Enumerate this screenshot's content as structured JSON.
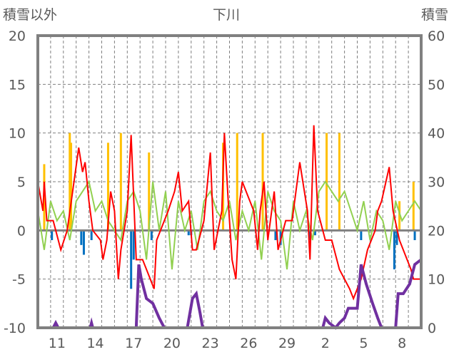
{
  "chart_data": {
    "type": "line",
    "title": "下川",
    "ylabel_left": "積雪以外",
    "ylabel_right": "積雪",
    "ylim_left": [
      -10,
      20
    ],
    "ylim_right": [
      0,
      60
    ],
    "yticks_left": [
      "20",
      "15",
      "10",
      "5",
      "0",
      "-5",
      "-10"
    ],
    "yticks_right": [
      "60",
      "50",
      "40",
      "30",
      "20",
      "10",
      "0"
    ],
    "x_range_days": [
      0,
      30
    ],
    "xtick_labels": [
      {
        "t": 1.5,
        "label": "11"
      },
      {
        "t": 4.5,
        "label": "14"
      },
      {
        "t": 7.5,
        "label": "17"
      },
      {
        "t": 10.5,
        "label": "20"
      },
      {
        "t": 13.5,
        "label": "23"
      },
      {
        "t": 16.5,
        "label": "26"
      },
      {
        "t": 19.5,
        "label": "29"
      },
      {
        "t": 22.5,
        "label": "2"
      },
      {
        "t": 25.5,
        "label": "5"
      },
      {
        "t": 28.5,
        "label": "8"
      }
    ],
    "grid": "dashed vertical per day, horizontal every 5",
    "colors": {
      "red": "#ff0000",
      "green": "#92d050",
      "purple": "#7030a0",
      "yellow": "#ffc000",
      "blue": "#0070c0",
      "frame": "#808080"
    },
    "series": [
      {
        "name": "red-line",
        "axis": "left",
        "points": [
          [
            0,
            5
          ],
          [
            0.4,
            2
          ],
          [
            0.5,
            5
          ],
          [
            0.7,
            1
          ],
          [
            1.2,
            1
          ],
          [
            1.8,
            -2
          ],
          [
            2.3,
            0
          ],
          [
            3.2,
            8.5
          ],
          [
            3.5,
            6
          ],
          [
            3.7,
            7
          ],
          [
            4.0,
            3
          ],
          [
            4.3,
            0
          ],
          [
            4.9,
            -1
          ],
          [
            5.1,
            -3
          ],
          [
            5.4,
            -1
          ],
          [
            5.7,
            4
          ],
          [
            6.0,
            2
          ],
          [
            6.3,
            -5
          ],
          [
            6.5,
            -2
          ],
          [
            7.0,
            2
          ],
          [
            7.3,
            9.8
          ],
          [
            7.7,
            -3
          ],
          [
            8.2,
            -3
          ],
          [
            8.8,
            -5
          ],
          [
            9.1,
            -6
          ],
          [
            9.3,
            -1
          ],
          [
            10.2,
            2
          ],
          [
            10.7,
            4
          ],
          [
            11.0,
            6
          ],
          [
            11.3,
            2
          ],
          [
            11.8,
            3
          ],
          [
            12.1,
            -2
          ],
          [
            12.4,
            -2
          ],
          [
            13.0,
            1
          ],
          [
            13.5,
            8
          ],
          [
            13.8,
            -2
          ],
          [
            14.4,
            2
          ],
          [
            14.6,
            10
          ],
          [
            14.9,
            3
          ],
          [
            15.2,
            -3
          ],
          [
            15.5,
            -5
          ],
          [
            15.8,
            3
          ],
          [
            16.0,
            5
          ],
          [
            16.6,
            3
          ],
          [
            16.9,
            2
          ],
          [
            17.2,
            -2
          ],
          [
            17.4,
            2
          ],
          [
            17.7,
            5
          ],
          [
            18.0,
            -1
          ],
          [
            18.5,
            4
          ],
          [
            18.8,
            -2
          ],
          [
            19.4,
            1
          ],
          [
            19.9,
            1
          ],
          [
            20.5,
            7
          ],
          [
            21.1,
            2
          ],
          [
            21.3,
            -3
          ],
          [
            21.6,
            10.8
          ],
          [
            21.9,
            2
          ],
          [
            22.5,
            -1
          ],
          [
            23.0,
            -1
          ],
          [
            23.6,
            -4
          ],
          [
            24.4,
            -6
          ],
          [
            24.7,
            -7
          ],
          [
            25.3,
            -5
          ],
          [
            25.8,
            -2
          ],
          [
            26.4,
            0
          ],
          [
            26.6,
            2
          ],
          [
            26.9,
            3
          ],
          [
            27.5,
            6.5
          ],
          [
            27.8,
            2
          ],
          [
            28.3,
            -1
          ],
          [
            29.2,
            -4
          ],
          [
            29.4,
            -5
          ],
          [
            30,
            -5
          ]
        ]
      },
      {
        "name": "green-line",
        "axis": "left",
        "step": 0.5,
        "values": [
          2,
          -2,
          3,
          1,
          2,
          -1,
          3,
          4,
          5,
          2,
          3,
          1,
          0,
          -1,
          3,
          4,
          2,
          -3,
          5,
          0,
          4,
          -4,
          3,
          0,
          2,
          -2,
          3,
          4,
          2,
          1,
          3,
          -1,
          2,
          0,
          3,
          -3,
          4,
          2,
          1,
          -4,
          3,
          0,
          2,
          -1,
          4,
          5,
          4,
          3,
          4,
          2,
          0,
          3,
          -1,
          2,
          1,
          -2,
          3,
          1,
          2,
          3,
          2
        ]
      },
      {
        "name": "purple-snow-depth",
        "axis": "right",
        "points": [
          [
            0,
            0
          ],
          [
            1.2,
            0
          ],
          [
            1.4,
            1
          ],
          [
            1.6,
            0
          ],
          [
            4.1,
            0
          ],
          [
            4.2,
            1
          ],
          [
            4.3,
            0
          ],
          [
            6.6,
            0
          ],
          [
            7.7,
            0
          ],
          [
            7.9,
            13
          ],
          [
            8.1,
            10
          ],
          [
            8.5,
            6
          ],
          [
            9.0,
            5
          ],
          [
            9.5,
            2
          ],
          [
            9.9,
            0
          ],
          [
            11.7,
            0
          ],
          [
            12.1,
            6
          ],
          [
            12.4,
            7
          ],
          [
            12.7,
            3
          ],
          [
            12.9,
            0
          ],
          [
            22.3,
            0
          ],
          [
            22.5,
            2
          ],
          [
            22.8,
            1
          ],
          [
            23.3,
            0
          ],
          [
            23.6,
            1
          ],
          [
            24.0,
            2
          ],
          [
            24.3,
            4
          ],
          [
            24.7,
            4
          ],
          [
            25.0,
            4
          ],
          [
            25.3,
            13
          ],
          [
            25.7,
            9
          ],
          [
            26.2,
            5
          ],
          [
            26.6,
            2
          ],
          [
            26.9,
            0
          ],
          [
            28.0,
            0
          ],
          [
            28.2,
            7
          ],
          [
            28.6,
            7
          ],
          [
            29.1,
            9
          ],
          [
            29.5,
            13
          ],
          [
            30,
            14
          ]
        ]
      }
    ],
    "bars_yellow": [
      [
        0.5,
        6.8
      ],
      [
        2.5,
        10
      ],
      [
        2.6,
        9
      ],
      [
        5.5,
        9
      ],
      [
        6.5,
        10
      ],
      [
        8.7,
        8
      ],
      [
        14.5,
        9
      ],
      [
        15.6,
        10
      ],
      [
        17.6,
        10
      ],
      [
        22.6,
        10
      ],
      [
        23.6,
        10
      ],
      [
        28.3,
        3
      ],
      [
        29.4,
        5
      ]
    ],
    "bars_blue": [
      [
        1.1,
        -1
      ],
      [
        3.4,
        -1.5
      ],
      [
        3.6,
        -2.5
      ],
      [
        4.2,
        -1
      ],
      [
        7.3,
        -6
      ],
      [
        7.5,
        -3
      ],
      [
        8.9,
        -1
      ],
      [
        11.8,
        -0.5
      ],
      [
        12.0,
        -0.5
      ],
      [
        18.6,
        -1
      ],
      [
        19.0,
        -1.5
      ],
      [
        21.3,
        -1
      ],
      [
        21.7,
        -0.5
      ],
      [
        25.3,
        -1
      ],
      [
        27.9,
        -4
      ],
      [
        28.1,
        -1.5
      ],
      [
        29.5,
        -1
      ]
    ]
  }
}
